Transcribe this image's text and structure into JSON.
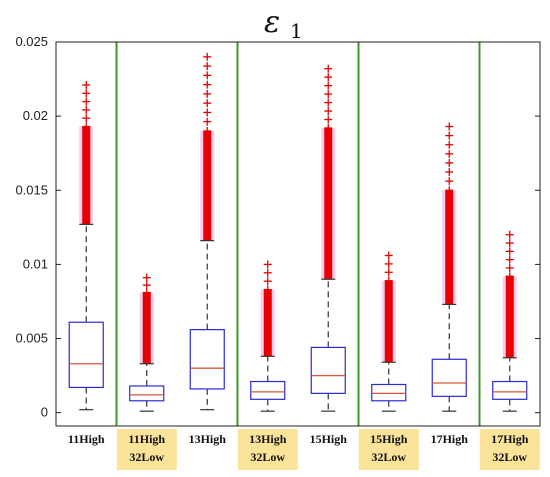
{
  "chart_data": {
    "type": "box",
    "title": {
      "symbol": "ε",
      "subscript": "1"
    },
    "xlabel": "",
    "ylabel": "",
    "ylim": [
      -0.0009,
      0.025
    ],
    "yticks": [
      0,
      0.005,
      0.01,
      0.015,
      0.02,
      0.025
    ],
    "ytick_labels": [
      "0",
      "0.005",
      "0.01",
      "0.015",
      "0.02",
      "0.025"
    ],
    "colors": {
      "box": "#2b2bd6",
      "median": "#d9573a",
      "whisker": "#333333",
      "outlier": "#e60000",
      "outlier_halo": "#f0a0e0",
      "separator": "#3f9a2a",
      "highlight_label_bg": "#fbe39a"
    },
    "categories": [
      {
        "lines": [
          "11High"
        ],
        "highlight": false,
        "q1": 0.0017,
        "median": 0.0033,
        "q3": 0.0061,
        "whisker_low": 0.0002,
        "whisker_high": 0.0127,
        "outliers_dense": [
          0.0127,
          0.0193
        ],
        "outliers_max": 0.0221
      },
      {
        "lines": [
          "11High",
          "32Low"
        ],
        "highlight": true,
        "q1": 0.0008,
        "median": 0.0012,
        "q3": 0.0018,
        "whisker_low": 0.0001,
        "whisker_high": 0.0033,
        "outliers_dense": [
          0.0033,
          0.0081
        ],
        "outliers_max": 0.0091
      },
      {
        "lines": [
          "13High"
        ],
        "highlight": false,
        "q1": 0.0016,
        "median": 0.003,
        "q3": 0.0056,
        "whisker_low": 0.0002,
        "whisker_high": 0.0116,
        "outliers_dense": [
          0.0116,
          0.019
        ],
        "outliers_max": 0.024
      },
      {
        "lines": [
          "13High",
          "32Low"
        ],
        "highlight": true,
        "q1": 0.0009,
        "median": 0.0014,
        "q3": 0.0021,
        "whisker_low": 0.0001,
        "whisker_high": 0.0038,
        "outliers_dense": [
          0.0038,
          0.0083
        ],
        "outliers_max": 0.01
      },
      {
        "lines": [
          "15High"
        ],
        "highlight": false,
        "q1": 0.0013,
        "median": 0.0025,
        "q3": 0.0044,
        "whisker_low": 0.0001,
        "whisker_high": 0.009,
        "outliers_dense": [
          0.009,
          0.0192
        ],
        "outliers_max": 0.0232
      },
      {
        "lines": [
          "15High",
          "32Low"
        ],
        "highlight": true,
        "q1": 0.0008,
        "median": 0.0013,
        "q3": 0.0019,
        "whisker_low": 0.0001,
        "whisker_high": 0.0034,
        "outliers_dense": [
          0.0034,
          0.0089
        ],
        "outliers_max": 0.0106
      },
      {
        "lines": [
          "17High"
        ],
        "highlight": false,
        "q1": 0.0011,
        "median": 0.002,
        "q3": 0.0036,
        "whisker_low": 0.0001,
        "whisker_high": 0.0073,
        "outliers_dense": [
          0.0073,
          0.015
        ],
        "outliers_max": 0.0193
      },
      {
        "lines": [
          "17High",
          "32Low"
        ],
        "highlight": true,
        "q1": 0.0009,
        "median": 0.0014,
        "q3": 0.0021,
        "whisker_low": 0.0001,
        "whisker_high": 0.0037,
        "outliers_dense": [
          0.0037,
          0.0092
        ],
        "outliers_max": 0.012
      }
    ],
    "separators_after": [
      0,
      2,
      4,
      6
    ],
    "grid": false,
    "legend": "none"
  }
}
